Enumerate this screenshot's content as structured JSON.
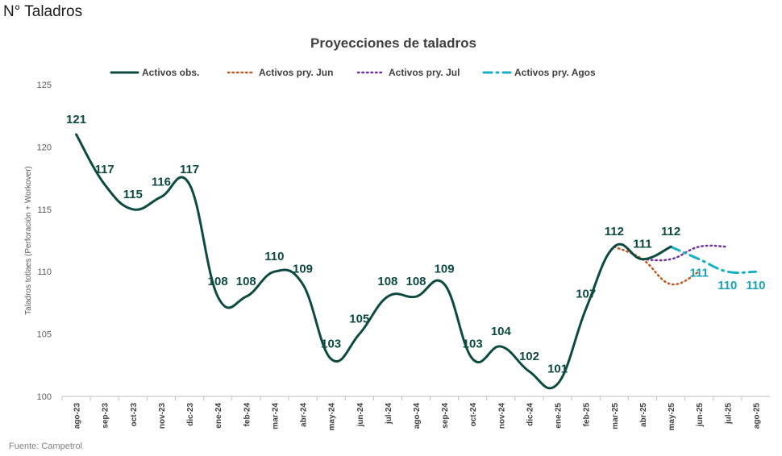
{
  "page": {
    "title": "N° Taladros",
    "source": "Fuente: Campetrol"
  },
  "chart_data": {
    "type": "line",
    "title": "Proyecciones de taladros",
    "ylabel": "Taladros totlaes (Perforación + Workover)",
    "xlabel": "",
    "ylim": [
      100,
      125
    ],
    "yticks": [
      100,
      105,
      110,
      115,
      120,
      125
    ],
    "grid": false,
    "legend_position": "top",
    "categories": [
      "ago-23",
      "sep-23",
      "oct-23",
      "nov-23",
      "dic-23",
      "ene-24",
      "feb-24",
      "mar-24",
      "abr-24",
      "may-24",
      "jun-24",
      "jul-24",
      "ago-24",
      "sep-24",
      "oct-24",
      "nov-24",
      "dic-24",
      "ene-25",
      "feb-25",
      "mar-25",
      "abr-25",
      "may-25",
      "jun-25",
      "jul-25",
      "ago-25"
    ],
    "series": [
      {
        "name": "Activos obs.",
        "color": "#0d4a42",
        "style": "solid",
        "values": [
          121,
          117,
          115,
          116,
          117,
          108,
          108,
          110,
          109,
          103,
          105,
          108,
          108,
          109,
          103,
          104,
          102,
          101,
          107,
          112,
          111,
          112,
          null,
          null,
          null
        ]
      },
      {
        "name": "Activos pry. Jun",
        "color": "#c0581f",
        "style": "dotted",
        "values": [
          null,
          null,
          null,
          null,
          null,
          null,
          null,
          null,
          null,
          null,
          null,
          null,
          null,
          null,
          null,
          null,
          null,
          null,
          null,
          112,
          111,
          109,
          110,
          null,
          null
        ]
      },
      {
        "name": "Activos pry. Jul",
        "color": "#7030a0",
        "style": "dotted",
        "values": [
          null,
          null,
          null,
          null,
          null,
          null,
          null,
          null,
          null,
          null,
          null,
          null,
          null,
          null,
          null,
          null,
          null,
          null,
          null,
          null,
          111,
          111,
          112,
          112,
          null
        ]
      },
      {
        "name": "Activos pry. Agos",
        "color": "#17b0c0",
        "style": "dashdot",
        "values": [
          null,
          null,
          null,
          null,
          null,
          null,
          null,
          null,
          null,
          null,
          null,
          null,
          null,
          null,
          null,
          null,
          null,
          null,
          null,
          null,
          null,
          112,
          111,
          110,
          110
        ]
      }
    ],
    "data_labels": [
      {
        "series": 0,
        "index": 0,
        "text": "121"
      },
      {
        "series": 0,
        "index": 1,
        "text": "117"
      },
      {
        "series": 0,
        "index": 2,
        "text": "115"
      },
      {
        "series": 0,
        "index": 3,
        "text": "116"
      },
      {
        "series": 0,
        "index": 4,
        "text": "117"
      },
      {
        "series": 0,
        "index": 5,
        "text": "108"
      },
      {
        "series": 0,
        "index": 6,
        "text": "108"
      },
      {
        "series": 0,
        "index": 7,
        "text": "110"
      },
      {
        "series": 0,
        "index": 8,
        "text": "109"
      },
      {
        "series": 0,
        "index": 9,
        "text": "103"
      },
      {
        "series": 0,
        "index": 10,
        "text": "105"
      },
      {
        "series": 0,
        "index": 11,
        "text": "108"
      },
      {
        "series": 0,
        "index": 12,
        "text": "108"
      },
      {
        "series": 0,
        "index": 13,
        "text": "109"
      },
      {
        "series": 0,
        "index": 14,
        "text": "103"
      },
      {
        "series": 0,
        "index": 15,
        "text": "104"
      },
      {
        "series": 0,
        "index": 16,
        "text": "102"
      },
      {
        "series": 0,
        "index": 17,
        "text": "101"
      },
      {
        "series": 0,
        "index": 18,
        "text": "107"
      },
      {
        "series": 0,
        "index": 19,
        "text": "112"
      },
      {
        "series": 0,
        "index": 20,
        "text": "111"
      },
      {
        "series": 0,
        "index": 21,
        "text": "112"
      },
      {
        "series": 3,
        "index": 22,
        "text": "111"
      },
      {
        "series": 3,
        "index": 23,
        "text": "110"
      },
      {
        "series": 3,
        "index": 24,
        "text": "110"
      }
    ]
  }
}
